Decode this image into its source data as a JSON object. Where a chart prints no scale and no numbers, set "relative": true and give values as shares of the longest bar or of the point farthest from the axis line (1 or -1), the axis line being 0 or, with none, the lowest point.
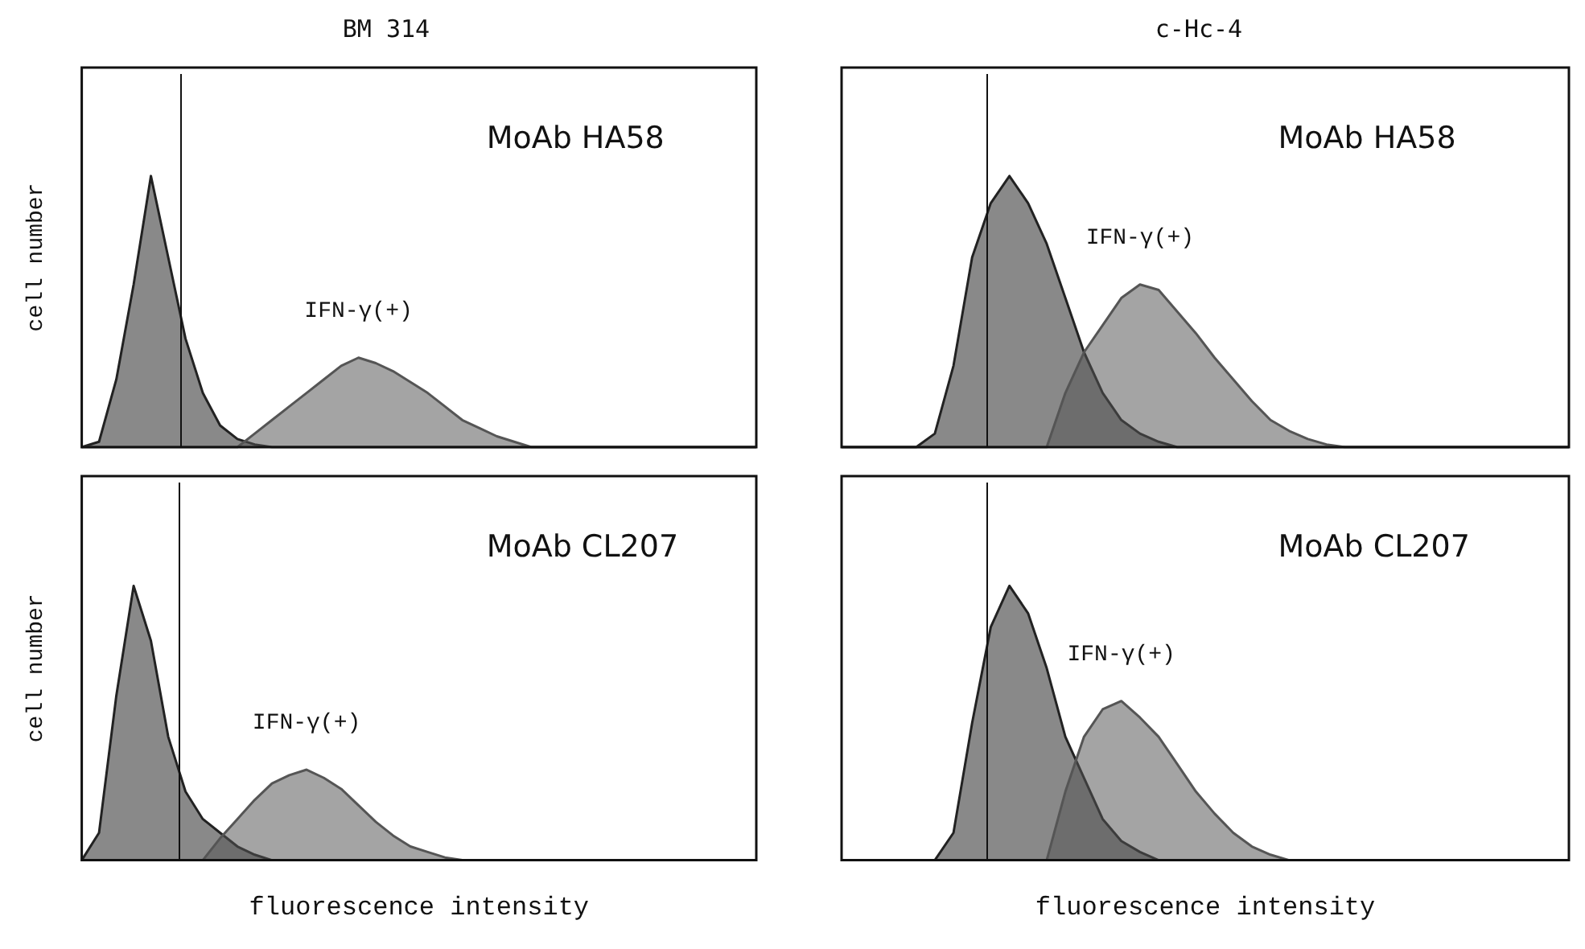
{
  "chart_data": [
    {
      "type": "area",
      "relative": true,
      "title": "BM 314",
      "ylabel": "cell number",
      "annotations": [
        "MoAb HA58"
      ],
      "legend": false,
      "categories": [
        null,
        null,
        null,
        null,
        null,
        null,
        null,
        null,
        null,
        null,
        null,
        null,
        null,
        null,
        null,
        null,
        null,
        null,
        null,
        null,
        null,
        null,
        null,
        null,
        null,
        null,
        null,
        null,
        null,
        null,
        null,
        null,
        null,
        null,
        null,
        null,
        null,
        null,
        null,
        null
      ],
      "series": [
        {
          "color": "#222222",
          "values": [
            0,
            0.02,
            0.25,
            0.6,
            1,
            0.7,
            0.4,
            0.2,
            0.08,
            0.03,
            0.01,
            0,
            0,
            0,
            0,
            0,
            0,
            0,
            0,
            0,
            0,
            0,
            0,
            0,
            0,
            0,
            0,
            0,
            0,
            0,
            0,
            0,
            0,
            0,
            0,
            0,
            0,
            0,
            0,
            0
          ]
        },
        {
          "name": "IFN-γ(+)",
          "color": "#555555",
          "values": [
            0,
            0,
            0,
            0,
            0,
            0,
            0,
            0,
            0,
            0,
            0.05,
            0.1,
            0.15,
            0.2,
            0.25,
            0.3,
            0.33,
            0.31,
            0.28,
            0.24,
            0.2,
            0.15,
            0.1,
            0.07,
            0.04,
            0.02,
            0,
            0,
            0,
            0,
            0,
            0,
            0,
            0,
            0,
            0,
            0,
            0,
            0,
            0
          ]
        }
      ]
    },
    {
      "type": "area",
      "relative": true,
      "title": "c-Hc-4",
      "annotations": [
        "MoAb HA58"
      ],
      "legend": false,
      "categories": [
        null,
        null,
        null,
        null,
        null,
        null,
        null,
        null,
        null,
        null,
        null,
        null,
        null,
        null,
        null,
        null,
        null,
        null,
        null,
        null,
        null,
        null,
        null,
        null,
        null,
        null,
        null,
        null,
        null,
        null,
        null,
        null,
        null,
        null,
        null,
        null,
        null,
        null,
        null,
        null
      ],
      "series": [
        {
          "color": "#222222",
          "values": [
            0,
            0,
            0,
            0,
            0,
            0.05,
            0.3,
            0.7,
            0.9,
            1,
            0.9,
            0.75,
            0.55,
            0.35,
            0.2,
            0.1,
            0.05,
            0.02,
            0,
            0,
            0,
            0,
            0,
            0,
            0,
            0,
            0,
            0,
            0,
            0,
            0,
            0,
            0,
            0,
            0,
            0,
            0,
            0,
            0,
            0
          ]
        },
        {
          "name": "IFN-γ(+)",
          "color": "#555555",
          "values": [
            0,
            0,
            0,
            0,
            0,
            0,
            0,
            0,
            0,
            0,
            0,
            0,
            0.2,
            0.35,
            0.45,
            0.55,
            0.6,
            0.58,
            0.5,
            0.42,
            0.33,
            0.25,
            0.17,
            0.1,
            0.06,
            0.03,
            0.01,
            0,
            0,
            0,
            0,
            0,
            0,
            0,
            0,
            0,
            0,
            0,
            0,
            0
          ]
        }
      ]
    },
    {
      "type": "area",
      "relative": true,
      "ylabel": "cell number",
      "xlabel": "fluorescence intensity",
      "annotations": [
        "MoAb CL207"
      ],
      "legend": false,
      "categories": [
        null,
        null,
        null,
        null,
        null,
        null,
        null,
        null,
        null,
        null,
        null,
        null,
        null,
        null,
        null,
        null,
        null,
        null,
        null,
        null,
        null,
        null,
        null,
        null,
        null,
        null,
        null,
        null,
        null,
        null,
        null,
        null,
        null,
        null,
        null,
        null,
        null,
        null,
        null,
        null
      ],
      "series": [
        {
          "color": "#222222",
          "values": [
            0,
            0.1,
            0.6,
            1,
            0.8,
            0.45,
            0.25,
            0.15,
            0.1,
            0.05,
            0.02,
            0,
            0,
            0,
            0,
            0,
            0,
            0,
            0,
            0,
            0,
            0,
            0,
            0,
            0,
            0,
            0,
            0,
            0,
            0,
            0,
            0,
            0,
            0,
            0,
            0,
            0,
            0,
            0,
            0
          ]
        },
        {
          "name": "IFN-γ(+)",
          "color": "#555555",
          "values": [
            0,
            0,
            0,
            0,
            0,
            0,
            0,
            0,
            0.08,
            0.15,
            0.22,
            0.28,
            0.31,
            0.33,
            0.3,
            0.26,
            0.2,
            0.14,
            0.09,
            0.05,
            0.03,
            0.01,
            0,
            0,
            0,
            0,
            0,
            0,
            0,
            0,
            0,
            0,
            0,
            0,
            0,
            0,
            0,
            0,
            0,
            0
          ]
        }
      ]
    },
    {
      "type": "area",
      "relative": true,
      "xlabel": "fluorescence intensity",
      "annotations": [
        "MoAb CL207"
      ],
      "legend": false,
      "categories": [
        null,
        null,
        null,
        null,
        null,
        null,
        null,
        null,
        null,
        null,
        null,
        null,
        null,
        null,
        null,
        null,
        null,
        null,
        null,
        null,
        null,
        null,
        null,
        null,
        null,
        null,
        null,
        null,
        null,
        null,
        null,
        null,
        null,
        null,
        null,
        null,
        null,
        null,
        null,
        null
      ],
      "series": [
        {
          "color": "#222222",
          "values": [
            0,
            0,
            0,
            0,
            0,
            0,
            0.1,
            0.5,
            0.85,
            1,
            0.9,
            0.7,
            0.45,
            0.3,
            0.15,
            0.07,
            0.03,
            0,
            0,
            0,
            0,
            0,
            0,
            0,
            0,
            0,
            0,
            0,
            0,
            0,
            0,
            0,
            0,
            0,
            0,
            0,
            0,
            0,
            0,
            0
          ]
        },
        {
          "name": "IFN-γ(+)",
          "color": "#555555",
          "values": [
            0,
            0,
            0,
            0,
            0,
            0,
            0,
            0,
            0,
            0,
            0,
            0,
            0.25,
            0.45,
            0.55,
            0.58,
            0.52,
            0.45,
            0.35,
            0.25,
            0.17,
            0.1,
            0.05,
            0.02,
            0,
            0,
            0,
            0,
            0,
            0,
            0,
            0,
            0,
            0,
            0,
            0,
            0,
            0,
            0,
            0
          ]
        }
      ]
    }
  ]
}
